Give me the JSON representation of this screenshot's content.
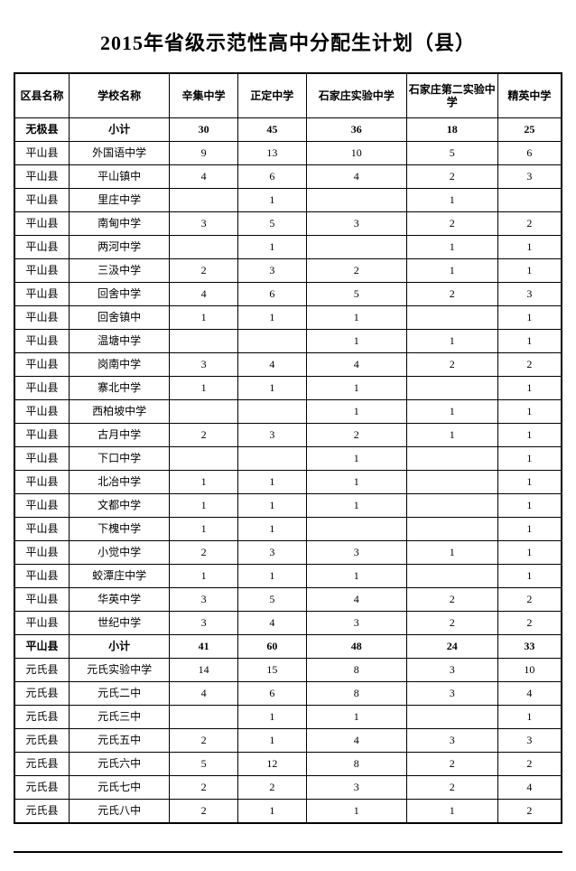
{
  "title": "2015年省级示范性高中分配生计划（县）",
  "columns": [
    "区县名称",
    "学校名称",
    "辛集中学",
    "正定中学",
    "石家庄实验中学",
    "石家庄第二实验中学",
    "精英中学"
  ],
  "rows": [
    {
      "bold": true,
      "cells": [
        "无极县",
        "小计",
        "30",
        "45",
        "36",
        "18",
        "25"
      ]
    },
    {
      "bold": false,
      "cells": [
        "平山县",
        "外国语中学",
        "9",
        "13",
        "10",
        "5",
        "6"
      ]
    },
    {
      "bold": false,
      "cells": [
        "平山县",
        "平山镇中",
        "4",
        "6",
        "4",
        "2",
        "3"
      ]
    },
    {
      "bold": false,
      "cells": [
        "平山县",
        "里庄中学",
        "",
        "1",
        "",
        "1",
        ""
      ]
    },
    {
      "bold": false,
      "cells": [
        "平山县",
        "南甸中学",
        "3",
        "5",
        "3",
        "2",
        "2"
      ]
    },
    {
      "bold": false,
      "cells": [
        "平山县",
        "两河中学",
        "",
        "1",
        "",
        "1",
        "1"
      ]
    },
    {
      "bold": false,
      "cells": [
        "平山县",
        "三汲中学",
        "2",
        "3",
        "2",
        "1",
        "1"
      ]
    },
    {
      "bold": false,
      "cells": [
        "平山县",
        "回舍中学",
        "4",
        "6",
        "5",
        "2",
        "3"
      ]
    },
    {
      "bold": false,
      "cells": [
        "平山县",
        "回舍镇中",
        "1",
        "1",
        "1",
        "",
        "1"
      ]
    },
    {
      "bold": false,
      "cells": [
        "平山县",
        "温塘中学",
        "",
        "",
        "1",
        "1",
        "1"
      ]
    },
    {
      "bold": false,
      "cells": [
        "平山县",
        "岗南中学",
        "3",
        "4",
        "4",
        "2",
        "2"
      ]
    },
    {
      "bold": false,
      "cells": [
        "平山县",
        "寨北中学",
        "1",
        "1",
        "1",
        "",
        "1"
      ]
    },
    {
      "bold": false,
      "cells": [
        "平山县",
        "西柏坡中学",
        "",
        "",
        "1",
        "1",
        "1"
      ]
    },
    {
      "bold": false,
      "cells": [
        "平山县",
        "古月中学",
        "2",
        "3",
        "2",
        "1",
        "1"
      ]
    },
    {
      "bold": false,
      "cells": [
        "平山县",
        "下口中学",
        "",
        "",
        "1",
        "",
        "1"
      ]
    },
    {
      "bold": false,
      "cells": [
        "平山县",
        "北冶中学",
        "1",
        "1",
        "1",
        "",
        "1"
      ]
    },
    {
      "bold": false,
      "cells": [
        "平山县",
        "文都中学",
        "1",
        "1",
        "1",
        "",
        "1"
      ]
    },
    {
      "bold": false,
      "cells": [
        "平山县",
        "下槐中学",
        "1",
        "1",
        "",
        "",
        "1"
      ]
    },
    {
      "bold": false,
      "cells": [
        "平山县",
        "小觉中学",
        "2",
        "3",
        "3",
        "1",
        "1"
      ]
    },
    {
      "bold": false,
      "cells": [
        "平山县",
        "蛟潭庄中学",
        "1",
        "1",
        "1",
        "",
        "1"
      ]
    },
    {
      "bold": false,
      "cells": [
        "平山县",
        "华英中学",
        "3",
        "5",
        "4",
        "2",
        "2"
      ]
    },
    {
      "bold": false,
      "cells": [
        "平山县",
        "世纪中学",
        "3",
        "4",
        "3",
        "2",
        "2"
      ]
    },
    {
      "bold": true,
      "cells": [
        "平山县",
        "小计",
        "41",
        "60",
        "48",
        "24",
        "33"
      ]
    },
    {
      "bold": false,
      "cells": [
        "元氏县",
        "元氏实验中学",
        "14",
        "15",
        "8",
        "3",
        "10"
      ]
    },
    {
      "bold": false,
      "cells": [
        "元氏县",
        "元氏二中",
        "4",
        "6",
        "8",
        "3",
        "4"
      ]
    },
    {
      "bold": false,
      "cells": [
        "元氏县",
        "元氏三中",
        "",
        "1",
        "1",
        "",
        "1"
      ]
    },
    {
      "bold": false,
      "cells": [
        "元氏县",
        "元氏五中",
        "2",
        "1",
        "4",
        "3",
        "3"
      ]
    },
    {
      "bold": false,
      "cells": [
        "元氏县",
        "元氏六中",
        "5",
        "12",
        "8",
        "2",
        "2"
      ]
    },
    {
      "bold": false,
      "cells": [
        "元氏县",
        "元氏七中",
        "2",
        "2",
        "3",
        "2",
        "4"
      ]
    },
    {
      "bold": false,
      "cells": [
        "元氏县",
        "元氏八中",
        "2",
        "1",
        "1",
        "1",
        "2"
      ]
    }
  ]
}
